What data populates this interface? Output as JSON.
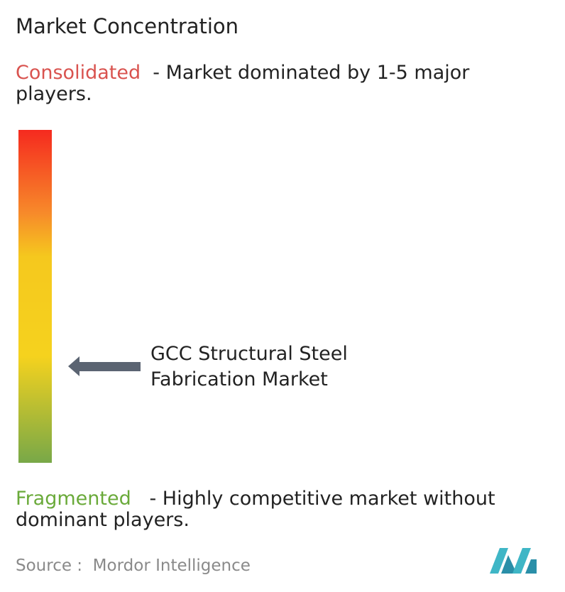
{
  "title": "Market Concentration",
  "consolidated": {
    "label": "Consolidated",
    "description": [
      "- Market dominated by 1-5 major",
      "players."
    ]
  },
  "market": {
    "label": [
      "GCC Structural Steel",
      "Fabrication Market"
    ]
  },
  "fragmented": {
    "label": "Fragmented",
    "description": [
      "- Highly competitive market without",
      "dominant players."
    ]
  },
  "source": "Source :  Mordor Intelligence"
}
